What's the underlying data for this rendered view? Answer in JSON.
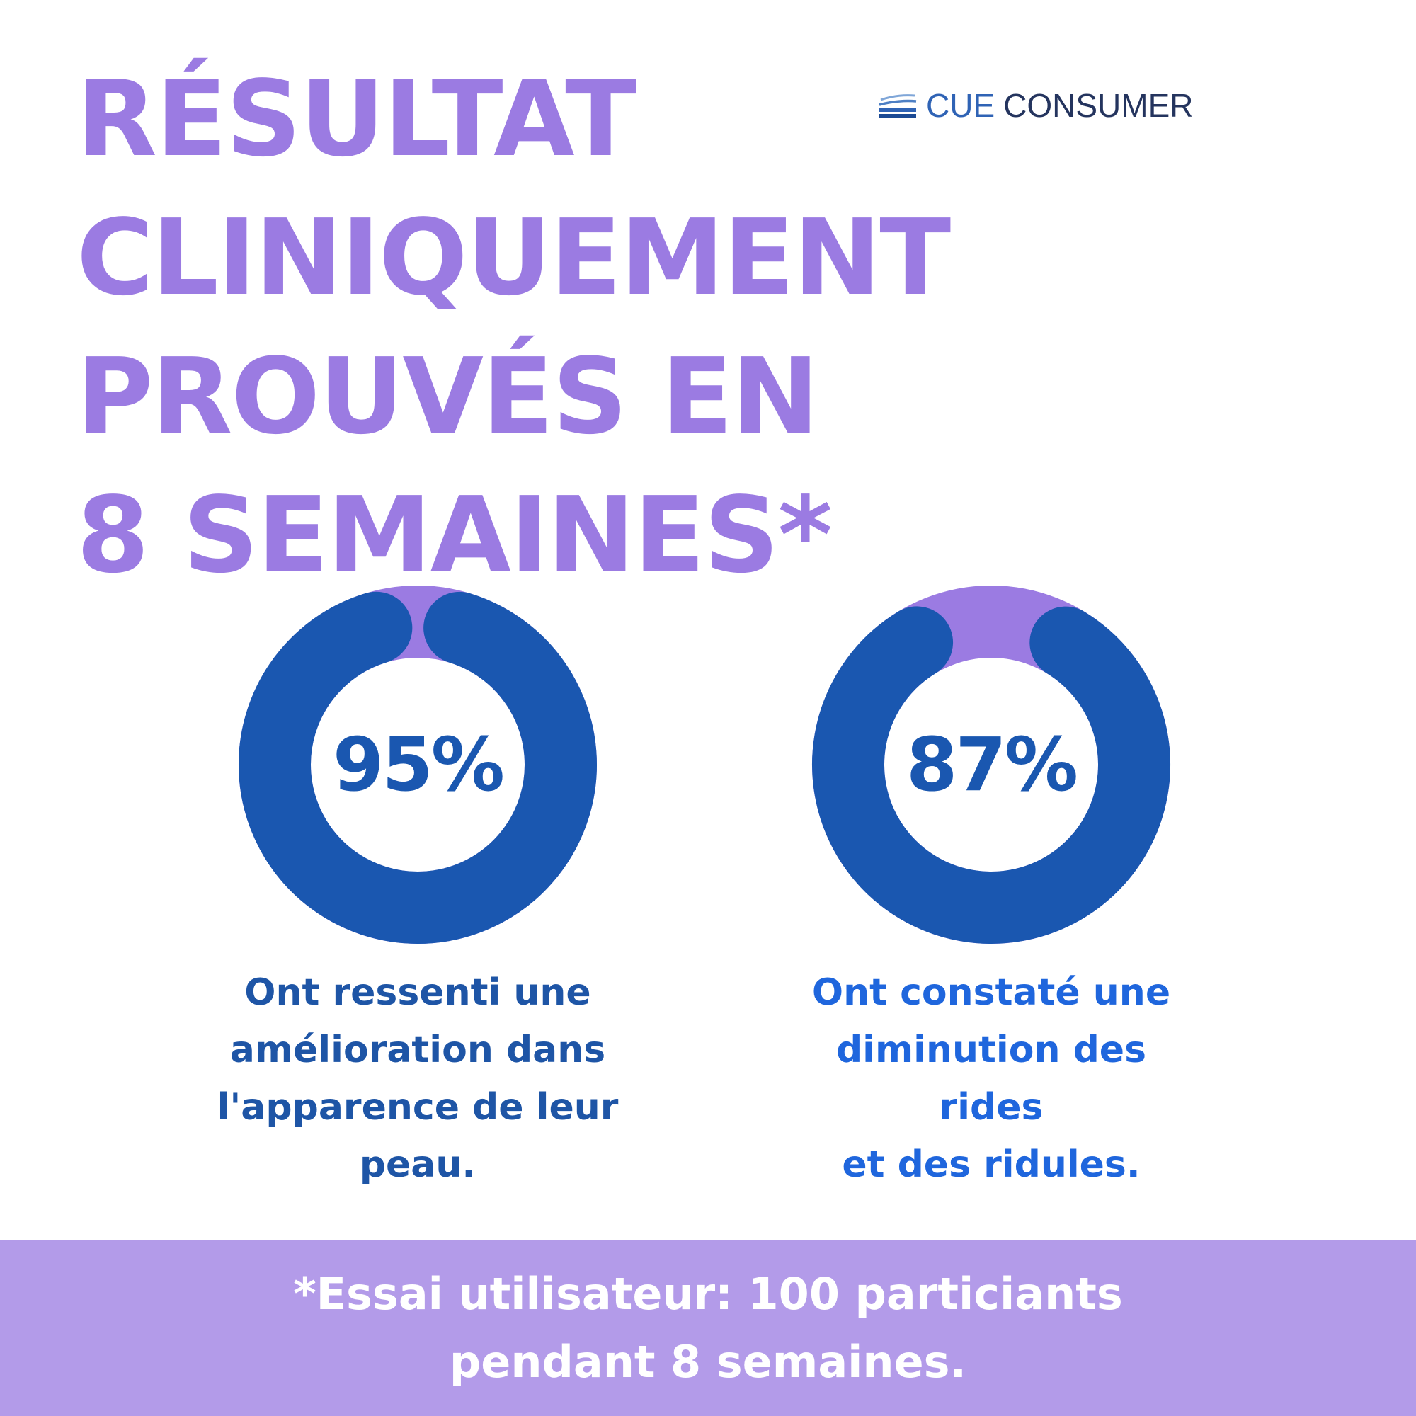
{
  "header": {
    "title_lines": [
      "RÉSULTAT",
      "CLINIQUEMENT",
      "PROUVÉS EN",
      "8 SEMAINES*"
    ]
  },
  "logo": {
    "word1": "CUE",
    "word2": "CONSUMER",
    "icon": "stacked-lines-icon"
  },
  "colors": {
    "title": "#9b7be2",
    "donut_value": "#1a57b0",
    "donut_remainder": "#9b7be2",
    "caption_1": "#1e55a6",
    "caption_2": "#1f66dd",
    "footer_bg": "#b39be9",
    "footer_text": "#ffffff"
  },
  "chart_data": [
    {
      "type": "pie",
      "label": "95%",
      "values": [
        95,
        5
      ],
      "caption_lines": [
        "Ont ressenti une",
        "amélioration dans",
        "l'apparence de leur",
        "peau."
      ]
    },
    {
      "type": "pie",
      "label": "87%",
      "values": [
        87,
        13
      ],
      "caption_lines": [
        "Ont constaté une",
        "diminution des",
        "rides",
        "et des ridules."
      ]
    }
  ],
  "footer": {
    "lines": [
      "*Essai utilisateur: 100 particiants",
      "pendant 8 semaines."
    ]
  }
}
